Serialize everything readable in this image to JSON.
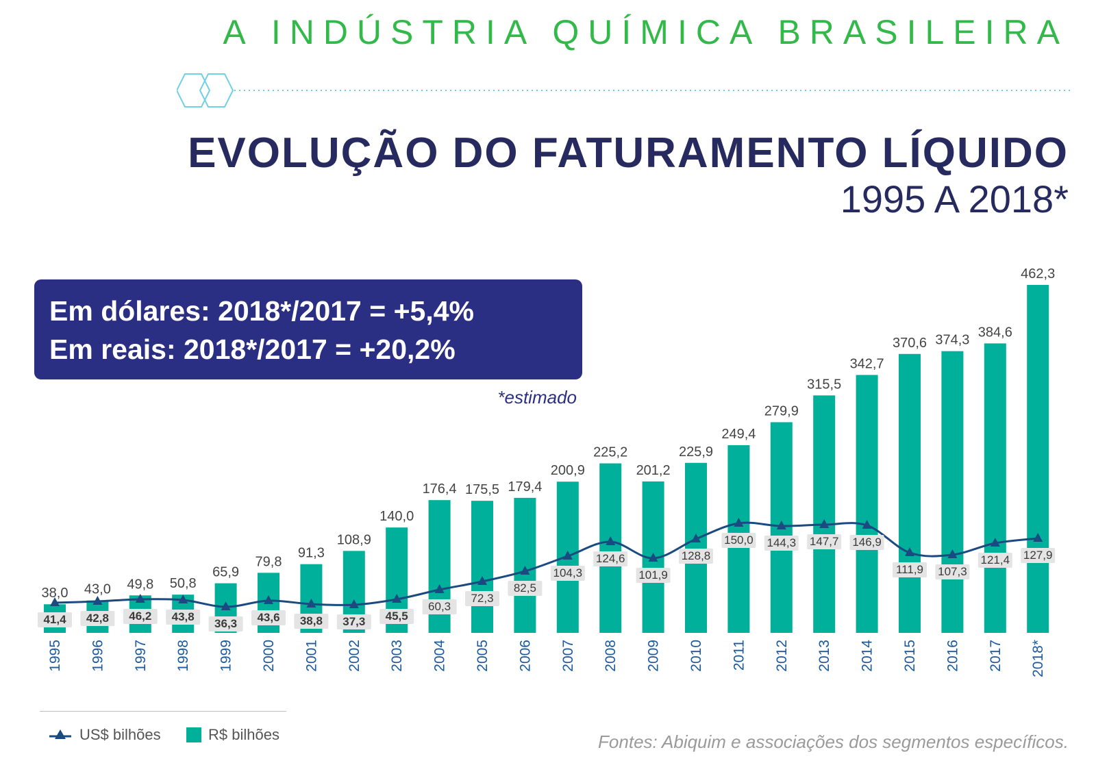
{
  "header": {
    "top_label": "A INDÚSTRIA QUÍMICA BRASILEIRA",
    "title": "EVOLUÇÃO DO FATURAMENTO LÍQUIDO",
    "subtitle": "1995 A 2018*"
  },
  "callout": {
    "line1": "Em dólares: 2018*/2017 = +5,4%",
    "line2": "Em reais: 2018*/2017 = +20,2%"
  },
  "note": "*estimado",
  "legend": {
    "usd": "US$ bilhões",
    "brl": "R$ bilhões"
  },
  "source": "Fontes: Abiquim e associações dos segmentos específicos.",
  "colors": {
    "bar": "#00b09b",
    "line": "#1a4a80",
    "title": "#272a5f",
    "top_label": "#33b94a",
    "callout_bg": "#2b2f83",
    "year_text": "#1a5aa0",
    "deco": "#6fd1e2"
  },
  "chart_data": {
    "type": "bar",
    "categories": [
      "1995",
      "1996",
      "1997",
      "1998",
      "1999",
      "2000",
      "2001",
      "2002",
      "2003",
      "2004",
      "2005",
      "2006",
      "2007",
      "2008",
      "2009",
      "2010",
      "2011",
      "2012",
      "2013",
      "2014",
      "2015",
      "2016",
      "2017",
      "2018*"
    ],
    "series": [
      {
        "name": "R$ bilhões",
        "type": "bar",
        "values": [
          38.0,
          43.0,
          49.8,
          50.8,
          65.9,
          79.8,
          91.3,
          108.9,
          140.0,
          176.4,
          175.5,
          179.4,
          200.9,
          225.2,
          201.2,
          225.9,
          249.4,
          279.9,
          315.5,
          342.7,
          370.6,
          374.3,
          384.6,
          462.3
        ],
        "labels": [
          "38,0",
          "43,0",
          "49,8",
          "50,8",
          "65,9",
          "79,8",
          "91,3",
          "108,9",
          "140,0",
          "176,4",
          "175,5",
          "179,4",
          "200,9",
          "225,2",
          "201,2",
          "225,9",
          "249,4",
          "279,9",
          "315,5",
          "342,7",
          "370,6",
          "374,3",
          "384,6",
          "462,3"
        ]
      },
      {
        "name": "US$ bilhões",
        "type": "line",
        "values": [
          41.4,
          42.8,
          46.2,
          43.8,
          36.3,
          43.6,
          38.8,
          37.3,
          45.5,
          60.3,
          72.3,
          82.5,
          104.3,
          124.6,
          101.9,
          128.8,
          150.0,
          144.3,
          147.7,
          146.9,
          111.9,
          107.3,
          121.4,
          127.9
        ],
        "labels": [
          "41,4",
          "42,8",
          "46,2",
          "43,8",
          "36,3",
          "43,6",
          "38,8",
          "37,3",
          "45,5",
          "60,3",
          "72,3",
          "82,5",
          "104,3",
          "124,6",
          "101,9",
          "128,8",
          "150,0",
          "144,3",
          "147,7",
          "146,9",
          "111,9",
          "107,3",
          "121,4",
          "127,9"
        ]
      }
    ],
    "ylim": [
      0,
      462.3
    ],
    "grid": false,
    "legend_position": "bottom-left"
  }
}
